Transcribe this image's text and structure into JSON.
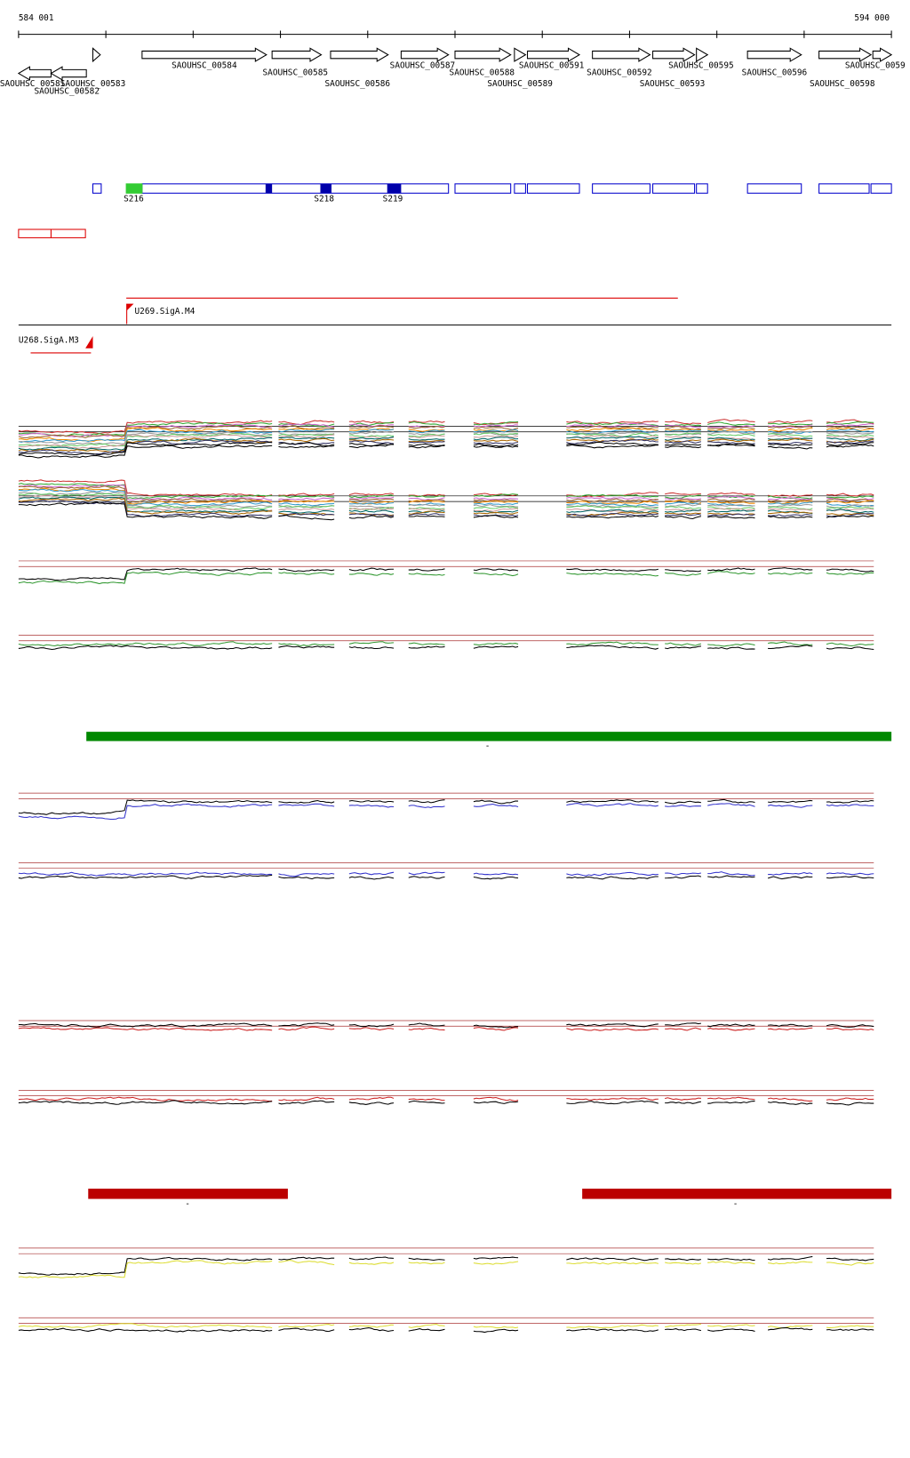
{
  "ruler": {
    "start": "584 001",
    "end": "594 000"
  },
  "genes": [
    {
      "label": "SAOUHSC_00581"
    },
    {
      "label": "SAOUHSC_00582"
    },
    {
      "label": "SAOUHSC_00583"
    },
    {
      "label": "SAOUHSC_00584"
    },
    {
      "label": "SAOUHSC_00585"
    },
    {
      "label": "SAOUHSC_00586"
    },
    {
      "label": "SAOUHSC_00587"
    },
    {
      "label": "SAOUHSC_00588"
    },
    {
      "label": "SAOUHSC_00589"
    },
    {
      "label": "SAOUHSC_00591"
    },
    {
      "label": "SAOUHSC_00592"
    },
    {
      "label": "SAOUHSC_00593"
    },
    {
      "label": "SAOUHSC_00595"
    },
    {
      "label": "SAOUHSC_00596"
    },
    {
      "label": "SAOUHSC_00598"
    },
    {
      "label": "SAOUHSC_0059"
    }
  ],
  "segments": [
    {
      "label": "S216"
    },
    {
      "label": "S218"
    },
    {
      "label": "S219"
    }
  ],
  "promoters": [
    {
      "label": "U269.SigA.M4"
    },
    {
      "label": "U268.SigA.M3"
    }
  ],
  "condition_bars": [
    {
      "label": "-"
    },
    {
      "label": "-"
    },
    {
      "label": "-"
    }
  ]
}
